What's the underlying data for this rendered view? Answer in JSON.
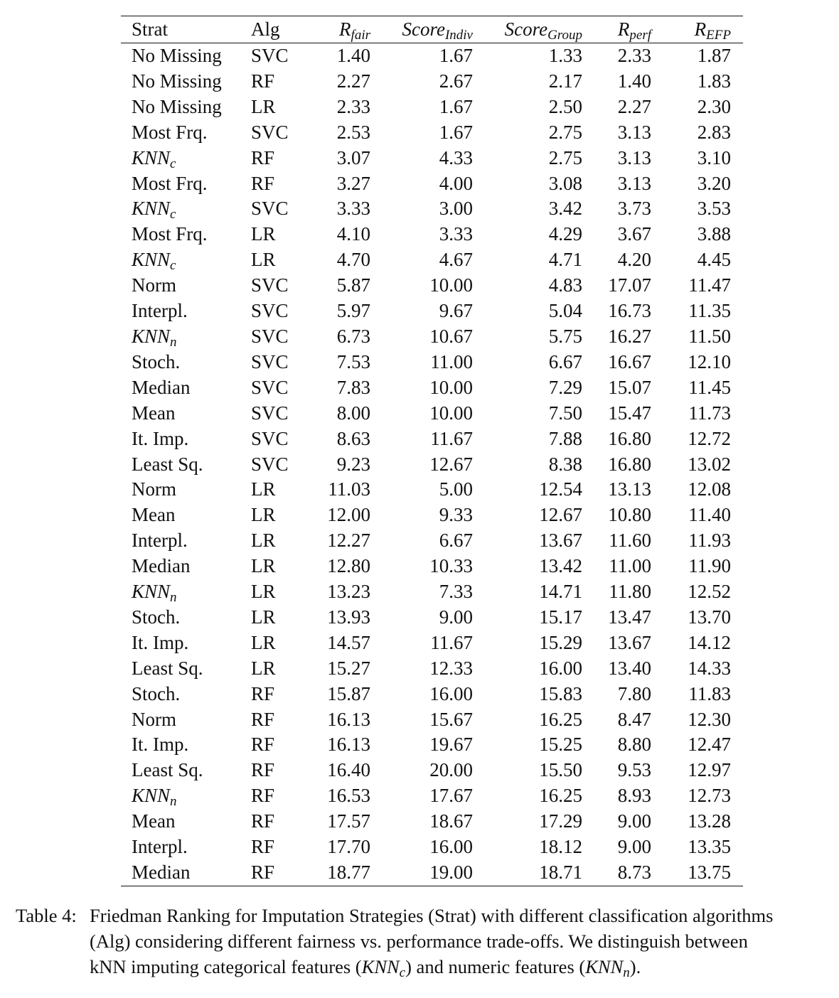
{
  "table": {
    "headers": {
      "strat": "Strat",
      "alg": "Alg",
      "rfair": {
        "base": "R",
        "sub": "fair"
      },
      "indiv": {
        "base": "Score",
        "sub": "Indiv"
      },
      "group": {
        "base": "Score",
        "sub": "Group"
      },
      "rperf": {
        "base": "R",
        "sub": "perf"
      },
      "refp": {
        "base": "R",
        "sub": "EFP"
      }
    },
    "rows": [
      {
        "strat": "No Missing",
        "knn": false,
        "alg": "SVC",
        "rfair": "1.40",
        "indiv": "1.67",
        "group": "1.33",
        "rperf": "2.33",
        "refp": "1.87"
      },
      {
        "strat": "No Missing",
        "knn": false,
        "alg": "RF",
        "rfair": "2.27",
        "indiv": "2.67",
        "group": "2.17",
        "rperf": "1.40",
        "refp": "1.83"
      },
      {
        "strat": "No Missing",
        "knn": false,
        "alg": "LR",
        "rfair": "2.33",
        "indiv": "1.67",
        "group": "2.50",
        "rperf": "2.27",
        "refp": "2.30"
      },
      {
        "strat": "Most Frq.",
        "knn": false,
        "alg": "SVC",
        "rfair": "2.53",
        "indiv": "1.67",
        "group": "2.75",
        "rperf": "3.13",
        "refp": "2.83"
      },
      {
        "strat": "KNN",
        "sub": "c",
        "knn": true,
        "alg": "RF",
        "rfair": "3.07",
        "indiv": "4.33",
        "group": "2.75",
        "rperf": "3.13",
        "refp": "3.10"
      },
      {
        "strat": "Most Frq.",
        "knn": false,
        "alg": "RF",
        "rfair": "3.27",
        "indiv": "4.00",
        "group": "3.08",
        "rperf": "3.13",
        "refp": "3.20"
      },
      {
        "strat": "KNN",
        "sub": "c",
        "knn": true,
        "alg": "SVC",
        "rfair": "3.33",
        "indiv": "3.00",
        "group": "3.42",
        "rperf": "3.73",
        "refp": "3.53"
      },
      {
        "strat": "Most Frq.",
        "knn": false,
        "alg": "LR",
        "rfair": "4.10",
        "indiv": "3.33",
        "group": "4.29",
        "rperf": "3.67",
        "refp": "3.88"
      },
      {
        "strat": "KNN",
        "sub": "c",
        "knn": true,
        "alg": "LR",
        "rfair": "4.70",
        "indiv": "4.67",
        "group": "4.71",
        "rperf": "4.20",
        "refp": "4.45"
      },
      {
        "strat": "Norm",
        "knn": false,
        "alg": "SVC",
        "rfair": "5.87",
        "indiv": "10.00",
        "group": "4.83",
        "rperf": "17.07",
        "refp": "11.47"
      },
      {
        "strat": "Interpl.",
        "knn": false,
        "alg": "SVC",
        "rfair": "5.97",
        "indiv": "9.67",
        "group": "5.04",
        "rperf": "16.73",
        "refp": "11.35"
      },
      {
        "strat": "KNN",
        "sub": "n",
        "knn": true,
        "alg": "SVC",
        "rfair": "6.73",
        "indiv": "10.67",
        "group": "5.75",
        "rperf": "16.27",
        "refp": "11.50"
      },
      {
        "strat": "Stoch.",
        "knn": false,
        "alg": "SVC",
        "rfair": "7.53",
        "indiv": "11.00",
        "group": "6.67",
        "rperf": "16.67",
        "refp": "12.10"
      },
      {
        "strat": "Median",
        "knn": false,
        "alg": "SVC",
        "rfair": "7.83",
        "indiv": "10.00",
        "group": "7.29",
        "rperf": "15.07",
        "refp": "11.45"
      },
      {
        "strat": "Mean",
        "knn": false,
        "alg": "SVC",
        "rfair": "8.00",
        "indiv": "10.00",
        "group": "7.50",
        "rperf": "15.47",
        "refp": "11.73"
      },
      {
        "strat": "It. Imp.",
        "knn": false,
        "alg": "SVC",
        "rfair": "8.63",
        "indiv": "11.67",
        "group": "7.88",
        "rperf": "16.80",
        "refp": "12.72"
      },
      {
        "strat": "Least Sq.",
        "knn": false,
        "alg": "SVC",
        "rfair": "9.23",
        "indiv": "12.67",
        "group": "8.38",
        "rperf": "16.80",
        "refp": "13.02"
      },
      {
        "strat": "Norm",
        "knn": false,
        "alg": "LR",
        "rfair": "11.03",
        "indiv": "5.00",
        "group": "12.54",
        "rperf": "13.13",
        "refp": "12.08"
      },
      {
        "strat": "Mean",
        "knn": false,
        "alg": "LR",
        "rfair": "12.00",
        "indiv": "9.33",
        "group": "12.67",
        "rperf": "10.80",
        "refp": "11.40"
      },
      {
        "strat": "Interpl.",
        "knn": false,
        "alg": "LR",
        "rfair": "12.27",
        "indiv": "6.67",
        "group": "13.67",
        "rperf": "11.60",
        "refp": "11.93"
      },
      {
        "strat": "Median",
        "knn": false,
        "alg": "LR",
        "rfair": "12.80",
        "indiv": "10.33",
        "group": "13.42",
        "rperf": "11.00",
        "refp": "11.90"
      },
      {
        "strat": "KNN",
        "sub": "n",
        "knn": true,
        "alg": "LR",
        "rfair": "13.23",
        "indiv": "7.33",
        "group": "14.71",
        "rperf": "11.80",
        "refp": "12.52"
      },
      {
        "strat": "Stoch.",
        "knn": false,
        "alg": "LR",
        "rfair": "13.93",
        "indiv": "9.00",
        "group": "15.17",
        "rperf": "13.47",
        "refp": "13.70"
      },
      {
        "strat": "It. Imp.",
        "knn": false,
        "alg": "LR",
        "rfair": "14.57",
        "indiv": "11.67",
        "group": "15.29",
        "rperf": "13.67",
        "refp": "14.12"
      },
      {
        "strat": "Least Sq.",
        "knn": false,
        "alg": "LR",
        "rfair": "15.27",
        "indiv": "12.33",
        "group": "16.00",
        "rperf": "13.40",
        "refp": "14.33"
      },
      {
        "strat": "Stoch.",
        "knn": false,
        "alg": "RF",
        "rfair": "15.87",
        "indiv": "16.00",
        "group": "15.83",
        "rperf": "7.80",
        "refp": "11.83"
      },
      {
        "strat": "Norm",
        "knn": false,
        "alg": "RF",
        "rfair": "16.13",
        "indiv": "15.67",
        "group": "16.25",
        "rperf": "8.47",
        "refp": "12.30"
      },
      {
        "strat": "It. Imp.",
        "knn": false,
        "alg": "RF",
        "rfair": "16.13",
        "indiv": "19.67",
        "group": "15.25",
        "rperf": "8.80",
        "refp": "12.47"
      },
      {
        "strat": "Least Sq.",
        "knn": false,
        "alg": "RF",
        "rfair": "16.40",
        "indiv": "20.00",
        "group": "15.50",
        "rperf": "9.53",
        "refp": "12.97"
      },
      {
        "strat": "KNN",
        "sub": "n",
        "knn": true,
        "alg": "RF",
        "rfair": "16.53",
        "indiv": "17.67",
        "group": "16.25",
        "rperf": "8.93",
        "refp": "12.73"
      },
      {
        "strat": "Mean",
        "knn": false,
        "alg": "RF",
        "rfair": "17.57",
        "indiv": "18.67",
        "group": "17.29",
        "rperf": "9.00",
        "refp": "13.28"
      },
      {
        "strat": "Interpl.",
        "knn": false,
        "alg": "RF",
        "rfair": "17.70",
        "indiv": "16.00",
        "group": "18.12",
        "rperf": "9.00",
        "refp": "13.35"
      },
      {
        "strat": "Median",
        "knn": false,
        "alg": "RF",
        "rfair": "18.77",
        "indiv": "19.00",
        "group": "18.71",
        "rperf": "8.73",
        "refp": "13.75"
      }
    ]
  },
  "caption": {
    "label": "Table 4:",
    "line1": "Friedman Ranking for Imputation Strategies (Strat) with different classification algorithms",
    "line2": "(Alg) considering different fairness vs. performance trade-offs. We distinguish between",
    "line3_a": "kNN imputing categorical features (",
    "knn_c_base": "KNN",
    "knn_c_sub": "c",
    "line3_b": ") and numeric features (",
    "knn_n_base": "KNN",
    "knn_n_sub": "n",
    "line3_c": ")."
  }
}
